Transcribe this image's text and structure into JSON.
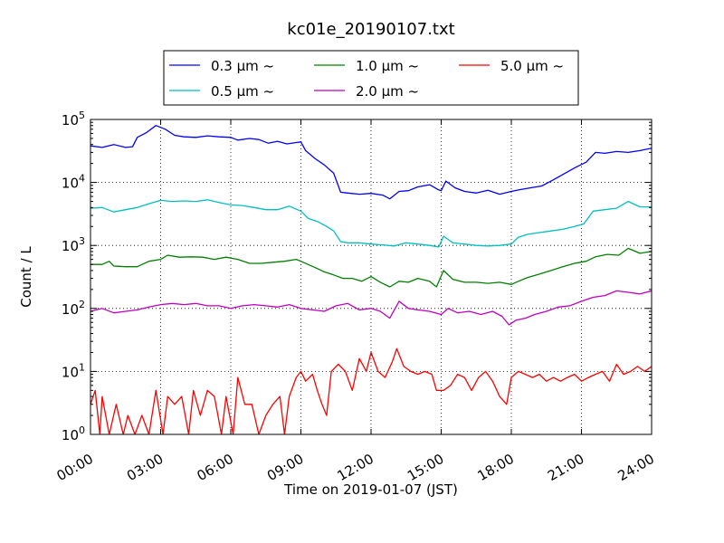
{
  "chart_data": {
    "type": "line",
    "title": "kc01e_20190107.txt",
    "xlabel": "Time on 2019-01-07 (JST)",
    "ylabel": "Count / L",
    "xlim": [
      0,
      24
    ],
    "ylim": [
      1,
      100000
    ],
    "yscale": "log",
    "grid": true,
    "legend_position": "top",
    "x_ticks": [
      {
        "value": 0,
        "label": "00:00"
      },
      {
        "value": 3,
        "label": "03:00"
      },
      {
        "value": 6,
        "label": "06:00"
      },
      {
        "value": 9,
        "label": "09:00"
      },
      {
        "value": 12,
        "label": "12:00"
      },
      {
        "value": 15,
        "label": "15:00"
      },
      {
        "value": 18,
        "label": "18:00"
      },
      {
        "value": 21,
        "label": "21:00"
      },
      {
        "value": 24,
        "label": "24:00"
      }
    ],
    "y_ticks": [
      {
        "value": 1,
        "base": "10",
        "exp": "0"
      },
      {
        "value": 10,
        "base": "10",
        "exp": "1"
      },
      {
        "value": 100,
        "base": "10",
        "exp": "2"
      },
      {
        "value": 1000,
        "base": "10",
        "exp": "3"
      },
      {
        "value": 10000,
        "base": "10",
        "exp": "4"
      },
      {
        "value": 100000,
        "base": "10",
        "exp": "5"
      }
    ],
    "series": [
      {
        "name": "0.3 μm ~",
        "color": "#0000ff",
        "points": [
          [
            0,
            38000
          ],
          [
            0.5,
            36000
          ],
          [
            1,
            40000
          ],
          [
            1.5,
            36000
          ],
          [
            1.8,
            37000
          ],
          [
            2,
            52000
          ],
          [
            2.4,
            62000
          ],
          [
            2.8,
            80000
          ],
          [
            3.2,
            70000
          ],
          [
            3.6,
            56000
          ],
          [
            4,
            53000
          ],
          [
            4.5,
            52000
          ],
          [
            5,
            55000
          ],
          [
            5.5,
            53000
          ],
          [
            6,
            52000
          ],
          [
            6.3,
            47000
          ],
          [
            6.8,
            50000
          ],
          [
            7.2,
            48000
          ],
          [
            7.6,
            42000
          ],
          [
            8,
            45000
          ],
          [
            8.4,
            41000
          ],
          [
            8.8,
            43000
          ],
          [
            9,
            44000
          ],
          [
            9.2,
            32000
          ],
          [
            9.6,
            24000
          ],
          [
            10,
            19000
          ],
          [
            10.4,
            14000
          ],
          [
            10.7,
            7000
          ],
          [
            11,
            6800
          ],
          [
            11.5,
            6500
          ],
          [
            12,
            6700
          ],
          [
            12.5,
            6300
          ],
          [
            12.8,
            5500
          ],
          [
            13.2,
            7200
          ],
          [
            13.6,
            7400
          ],
          [
            14,
            8500
          ],
          [
            14.5,
            9200
          ],
          [
            14.9,
            7600
          ],
          [
            15,
            7400
          ],
          [
            15.2,
            10500
          ],
          [
            15.6,
            8200
          ],
          [
            16,
            7200
          ],
          [
            16.5,
            6800
          ],
          [
            17,
            7500
          ],
          [
            17.5,
            6500
          ],
          [
            18,
            7200
          ],
          [
            18.3,
            7600
          ],
          [
            18.8,
            8200
          ],
          [
            19.3,
            8800
          ],
          [
            19.8,
            11000
          ],
          [
            20.3,
            14000
          ],
          [
            20.7,
            17000
          ],
          [
            21.2,
            21000
          ],
          [
            21.6,
            30000
          ],
          [
            22,
            29000
          ],
          [
            22.5,
            31000
          ],
          [
            23,
            30000
          ],
          [
            23.5,
            32000
          ],
          [
            24,
            35000
          ]
        ]
      },
      {
        "name": "0.5 μm ~",
        "color": "#00bfbf",
        "points": [
          [
            0,
            3900
          ],
          [
            0.5,
            4000
          ],
          [
            1,
            3400
          ],
          [
            1.5,
            3700
          ],
          [
            2,
            4000
          ],
          [
            2.5,
            4600
          ],
          [
            3,
            5200
          ],
          [
            3.5,
            5000
          ],
          [
            4,
            5100
          ],
          [
            4.5,
            5000
          ],
          [
            5,
            5300
          ],
          [
            5.5,
            4800
          ],
          [
            6,
            4400
          ],
          [
            6.5,
            4300
          ],
          [
            7,
            4000
          ],
          [
            7.5,
            3700
          ],
          [
            8,
            3700
          ],
          [
            8.5,
            4200
          ],
          [
            9,
            3500
          ],
          [
            9.3,
            2700
          ],
          [
            9.7,
            2400
          ],
          [
            10.1,
            2000
          ],
          [
            10.4,
            1700
          ],
          [
            10.7,
            1150
          ],
          [
            11,
            1100
          ],
          [
            11.5,
            1100
          ],
          [
            12,
            1050
          ],
          [
            12.5,
            1020
          ],
          [
            13,
            980
          ],
          [
            13.5,
            1100
          ],
          [
            14,
            1050
          ],
          [
            14.5,
            1000
          ],
          [
            14.9,
            950
          ],
          [
            15.1,
            1400
          ],
          [
            15.5,
            1100
          ],
          [
            16,
            1050
          ],
          [
            16.5,
            1000
          ],
          [
            17,
            980
          ],
          [
            17.5,
            1000
          ],
          [
            18,
            1050
          ],
          [
            18.3,
            1350
          ],
          [
            18.7,
            1500
          ],
          [
            19.2,
            1600
          ],
          [
            19.7,
            1700
          ],
          [
            20.2,
            1800
          ],
          [
            20.7,
            2000
          ],
          [
            21.1,
            2200
          ],
          [
            21.5,
            3500
          ],
          [
            22,
            3700
          ],
          [
            22.5,
            3900
          ],
          [
            23,
            5000
          ],
          [
            23.5,
            4100
          ],
          [
            24,
            4100
          ]
        ]
      },
      {
        "name": "1.0 μm ~",
        "color": "#008000",
        "points": [
          [
            0,
            500
          ],
          [
            0.5,
            500
          ],
          [
            0.8,
            560
          ],
          [
            1,
            470
          ],
          [
            1.5,
            460
          ],
          [
            2,
            460
          ],
          [
            2.5,
            560
          ],
          [
            3,
            600
          ],
          [
            3.3,
            700
          ],
          [
            3.8,
            650
          ],
          [
            4.3,
            660
          ],
          [
            4.8,
            650
          ],
          [
            5.3,
            600
          ],
          [
            5.8,
            650
          ],
          [
            6.3,
            600
          ],
          [
            6.8,
            520
          ],
          [
            7.3,
            520
          ],
          [
            7.8,
            540
          ],
          [
            8.3,
            560
          ],
          [
            8.8,
            600
          ],
          [
            9,
            560
          ],
          [
            9.3,
            500
          ],
          [
            9.7,
            430
          ],
          [
            10,
            380
          ],
          [
            10.4,
            340
          ],
          [
            10.8,
            300
          ],
          [
            11.2,
            300
          ],
          [
            11.6,
            270
          ],
          [
            12,
            320
          ],
          [
            12.4,
            260
          ],
          [
            12.8,
            220
          ],
          [
            13.2,
            270
          ],
          [
            13.6,
            260
          ],
          [
            14,
            300
          ],
          [
            14.5,
            270
          ],
          [
            14.8,
            220
          ],
          [
            15.1,
            400
          ],
          [
            15.5,
            290
          ],
          [
            16,
            260
          ],
          [
            16.5,
            260
          ],
          [
            17,
            250
          ],
          [
            17.5,
            260
          ],
          [
            18,
            240
          ],
          [
            18.3,
            270
          ],
          [
            18.7,
            310
          ],
          [
            19.2,
            350
          ],
          [
            19.7,
            400
          ],
          [
            20.2,
            460
          ],
          [
            20.7,
            520
          ],
          [
            21.2,
            560
          ],
          [
            21.6,
            660
          ],
          [
            22.1,
            720
          ],
          [
            22.6,
            700
          ],
          [
            23,
            900
          ],
          [
            23.5,
            750
          ],
          [
            24,
            800
          ]
        ]
      },
      {
        "name": "2.0 μm ~",
        "color": "#bf00bf",
        "points": [
          [
            0,
            90
          ],
          [
            0.5,
            100
          ],
          [
            1,
            85
          ],
          [
            1.5,
            90
          ],
          [
            2,
            95
          ],
          [
            2.5,
            105
          ],
          [
            3,
            115
          ],
          [
            3.5,
            120
          ],
          [
            4,
            115
          ],
          [
            4.5,
            120
          ],
          [
            5,
            110
          ],
          [
            5.5,
            110
          ],
          [
            6,
            100
          ],
          [
            6.5,
            110
          ],
          [
            7,
            115
          ],
          [
            7.5,
            110
          ],
          [
            8,
            105
          ],
          [
            8.5,
            115
          ],
          [
            9,
            100
          ],
          [
            9.5,
            95
          ],
          [
            10,
            90
          ],
          [
            10.5,
            110
          ],
          [
            11,
            120
          ],
          [
            11.5,
            95
          ],
          [
            12,
            100
          ],
          [
            12.4,
            90
          ],
          [
            12.8,
            70
          ],
          [
            13.2,
            130
          ],
          [
            13.6,
            100
          ],
          [
            14,
            95
          ],
          [
            14.5,
            90
          ],
          [
            15,
            80
          ],
          [
            15.3,
            100
          ],
          [
            15.7,
            85
          ],
          [
            16.2,
            90
          ],
          [
            16.7,
            80
          ],
          [
            17.2,
            90
          ],
          [
            17.6,
            75
          ],
          [
            17.9,
            55
          ],
          [
            18.2,
            65
          ],
          [
            18.6,
            70
          ],
          [
            19,
            80
          ],
          [
            19.5,
            90
          ],
          [
            20,
            105
          ],
          [
            20.5,
            110
          ],
          [
            21,
            130
          ],
          [
            21.5,
            150
          ],
          [
            22,
            160
          ],
          [
            22.5,
            190
          ],
          [
            23,
            180
          ],
          [
            23.5,
            170
          ],
          [
            24,
            190
          ]
        ]
      },
      {
        "name": "5.0 μm ~",
        "color": "#ff0000",
        "points": [
          [
            0,
            3
          ],
          [
            0.2,
            5
          ],
          [
            0.4,
            1
          ],
          [
            0.5,
            4
          ],
          [
            0.8,
            1
          ],
          [
            1.1,
            3
          ],
          [
            1.4,
            1
          ],
          [
            1.6,
            2
          ],
          [
            1.9,
            1
          ],
          [
            2.2,
            2
          ],
          [
            2.5,
            1
          ],
          [
            2.8,
            5
          ],
          [
            3.1,
            1
          ],
          [
            3.3,
            4
          ],
          [
            3.6,
            3
          ],
          [
            3.9,
            4
          ],
          [
            4.2,
            1
          ],
          [
            4.4,
            5
          ],
          [
            4.7,
            2
          ],
          [
            5,
            5
          ],
          [
            5.3,
            4
          ],
          [
            5.6,
            1
          ],
          [
            5.8,
            4
          ],
          [
            6.1,
            1
          ],
          [
            6.3,
            8
          ],
          [
            6.6,
            3
          ],
          [
            6.9,
            3
          ],
          [
            7.2,
            1
          ],
          [
            7.5,
            2
          ],
          [
            7.8,
            3
          ],
          [
            8.1,
            4
          ],
          [
            8.3,
            1
          ],
          [
            8.5,
            4
          ],
          [
            8.8,
            8
          ],
          [
            9,
            10
          ],
          [
            9.2,
            7
          ],
          [
            9.5,
            9
          ],
          [
            9.7,
            5
          ],
          [
            9.9,
            3
          ],
          [
            10.1,
            2
          ],
          [
            10.3,
            10
          ],
          [
            10.6,
            13
          ],
          [
            10.9,
            10
          ],
          [
            11.2,
            5
          ],
          [
            11.5,
            16
          ],
          [
            11.8,
            10
          ],
          [
            12,
            20
          ],
          [
            12.3,
            10
          ],
          [
            12.6,
            8
          ],
          [
            12.9,
            14
          ],
          [
            13.1,
            23
          ],
          [
            13.4,
            12
          ],
          [
            13.7,
            10
          ],
          [
            14,
            9
          ],
          [
            14.3,
            10
          ],
          [
            14.6,
            9
          ],
          [
            14.8,
            5
          ],
          [
            15.1,
            5
          ],
          [
            15.4,
            6
          ],
          [
            15.7,
            9
          ],
          [
            16,
            8
          ],
          [
            16.3,
            5
          ],
          [
            16.6,
            8
          ],
          [
            16.9,
            10
          ],
          [
            17.2,
            7
          ],
          [
            17.5,
            4
          ],
          [
            17.8,
            3
          ],
          [
            18,
            8
          ],
          [
            18.3,
            10
          ],
          [
            18.6,
            9
          ],
          [
            18.9,
            8
          ],
          [
            19.2,
            9
          ],
          [
            19.5,
            7
          ],
          [
            19.8,
            8
          ],
          [
            20.1,
            7
          ],
          [
            20.4,
            8
          ],
          [
            20.7,
            9
          ],
          [
            21,
            7
          ],
          [
            21.3,
            8
          ],
          [
            21.6,
            9
          ],
          [
            21.9,
            10
          ],
          [
            22.2,
            7
          ],
          [
            22.5,
            13
          ],
          [
            22.8,
            9
          ],
          [
            23.1,
            10
          ],
          [
            23.4,
            12
          ],
          [
            23.7,
            10
          ],
          [
            24,
            12
          ]
        ]
      }
    ]
  }
}
